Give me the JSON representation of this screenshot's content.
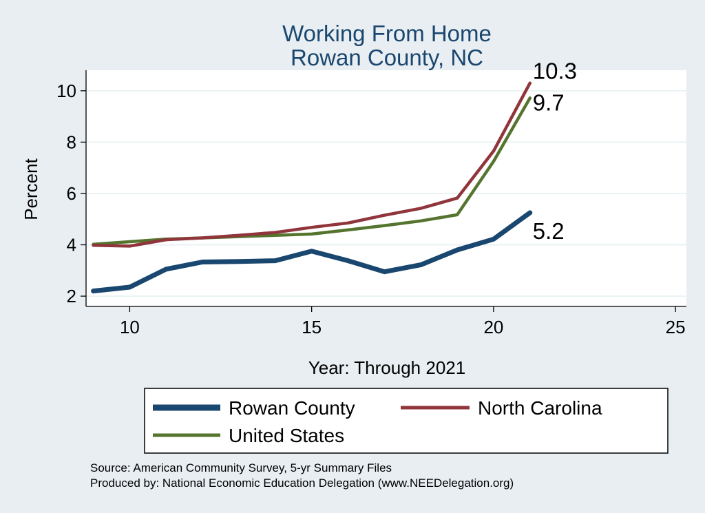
{
  "chart_data": {
    "type": "line",
    "title": "Working From Home",
    "subtitle": "Rowan County, NC",
    "xlabel": "Year: Through 2021",
    "ylabel": "Percent",
    "xlim": [
      8.8,
      25.3
    ],
    "ylim": [
      1.6,
      10.8
    ],
    "xticks": [
      10,
      15,
      20,
      25
    ],
    "yticks": [
      2,
      4,
      6,
      8,
      10
    ],
    "grid": true,
    "legend_position": "bottom",
    "series": [
      {
        "name": "Rowan County",
        "color": "#1a476f",
        "x": [
          9,
          10,
          11,
          12,
          13,
          14,
          15,
          16,
          17,
          18,
          19,
          20,
          21
        ],
        "values": [
          2.2,
          2.35,
          3.05,
          3.33,
          3.35,
          3.38,
          3.75,
          3.38,
          2.95,
          3.22,
          3.8,
          4.22,
          5.25
        ],
        "end_label": "5.2"
      },
      {
        "name": "North Carolina",
        "color": "#90353b",
        "x": [
          9,
          10,
          11,
          12,
          13,
          14,
          15,
          16,
          17,
          18,
          19,
          20,
          21
        ],
        "values": [
          3.98,
          3.95,
          4.2,
          4.27,
          4.37,
          4.48,
          4.68,
          4.85,
          5.15,
          5.42,
          5.82,
          7.65,
          10.3
        ],
        "end_label": "10.3"
      },
      {
        "name": "United States",
        "color": "#55752f",
        "x": [
          9,
          10,
          11,
          12,
          13,
          14,
          15,
          16,
          17,
          18,
          19,
          20,
          21
        ],
        "values": [
          4.02,
          4.12,
          4.22,
          4.27,
          4.32,
          4.37,
          4.42,
          4.58,
          4.75,
          4.93,
          5.17,
          7.25,
          9.72
        ],
        "end_label": "9.7"
      }
    ]
  },
  "footer": {
    "source": "Source: American Community Survey, 5-yr Summary Files",
    "produced_by": "Produced by: National Economic Education Delegation (www.NEEDelegation.org)"
  },
  "colors": {
    "background": "#e9eef2",
    "plot_background": "#ffffff",
    "title": "#1a476f",
    "grid": "#eaf2f3"
  }
}
